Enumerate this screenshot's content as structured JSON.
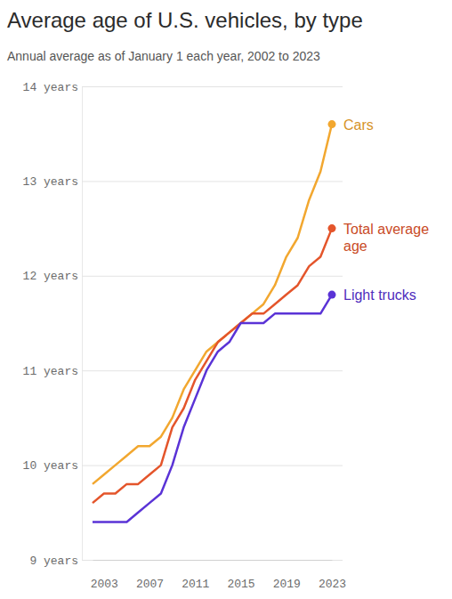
{
  "chart_data": {
    "type": "line",
    "title": "Average age of U.S. vehicles, by type",
    "subtitle": "Annual average as of January 1 each year, 2002 to 2023",
    "x": [
      2002,
      2003,
      2004,
      2005,
      2006,
      2007,
      2008,
      2009,
      2010,
      2011,
      2012,
      2013,
      2014,
      2015,
      2016,
      2017,
      2018,
      2019,
      2020,
      2021,
      2022,
      2023
    ],
    "series": [
      {
        "name": "Cars",
        "color": "#f2a72f",
        "values": [
          9.8,
          9.9,
          10.0,
          10.1,
          10.2,
          10.2,
          10.3,
          10.5,
          10.8,
          11.0,
          11.2,
          11.3,
          11.4,
          11.5,
          11.6,
          11.7,
          11.9,
          12.2,
          12.4,
          12.8,
          13.1,
          13.6
        ]
      },
      {
        "name": "Total average age",
        "color": "#e4552b",
        "values": [
          9.6,
          9.7,
          9.7,
          9.8,
          9.8,
          9.9,
          10.0,
          10.4,
          10.6,
          10.9,
          11.1,
          11.3,
          11.4,
          11.5,
          11.6,
          11.6,
          11.7,
          11.8,
          11.9,
          12.1,
          12.2,
          12.5
        ]
      },
      {
        "name": "Light trucks",
        "color": "#5a33d6",
        "values": [
          9.4,
          9.4,
          9.4,
          9.4,
          9.5,
          9.6,
          9.7,
          10.0,
          10.4,
          10.7,
          11.0,
          11.2,
          11.3,
          11.5,
          11.5,
          11.5,
          11.6,
          11.6,
          11.6,
          11.6,
          11.6,
          11.8
        ]
      }
    ],
    "xlim": [
      2002,
      2023
    ],
    "xticks": [
      2003,
      2007,
      2011,
      2015,
      2019,
      2023
    ],
    "ylim": [
      9,
      14
    ],
    "yticks": [
      {
        "value": 9,
        "label": "9 years"
      },
      {
        "value": 10,
        "label": "10 years"
      },
      {
        "value": 11,
        "label": "11 years"
      },
      {
        "value": 12,
        "label": "12 years"
      },
      {
        "value": 13,
        "label": "13 years"
      },
      {
        "value": 14,
        "label": "14 years"
      }
    ],
    "grid": true
  }
}
